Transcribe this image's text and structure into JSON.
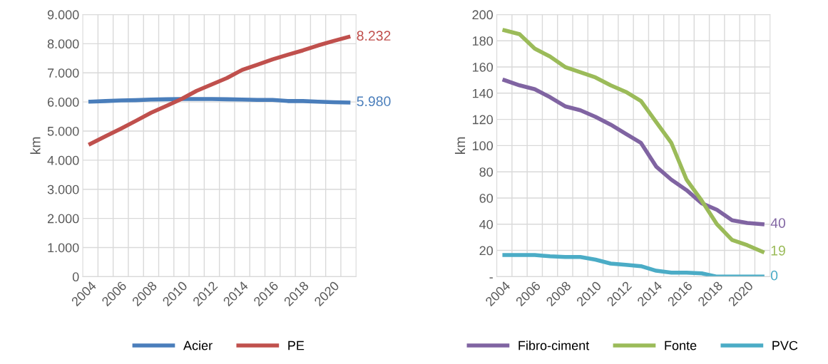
{
  "chart_data": [
    {
      "type": "line",
      "ylabel": "km",
      "categories": [
        "2004",
        null,
        "2006",
        null,
        "2008",
        null,
        "2010",
        null,
        "2012",
        null,
        "2014",
        null,
        "2016",
        null,
        "2018",
        null,
        "2020",
        null
      ],
      "series": [
        {
          "name": "Acier",
          "color": "#4a7ebb",
          "values": [
            6010,
            6030,
            6050,
            6060,
            6080,
            6090,
            6100,
            6100,
            6100,
            6090,
            6080,
            6070,
            6070,
            6030,
            6030,
            6010,
            5990,
            5980
          ],
          "value_labels": [
            null,
            null,
            null,
            null,
            null,
            null,
            null,
            null,
            null,
            null,
            null,
            null,
            null,
            null,
            null,
            null,
            null,
            "5.980"
          ]
        },
        {
          "name": "PE",
          "color": "#c0504d",
          "values": [
            4560,
            4820,
            5080,
            5350,
            5630,
            5860,
            6100,
            6380,
            6600,
            6820,
            7100,
            7280,
            7460,
            7620,
            7770,
            7940,
            8090,
            8232
          ],
          "value_labels": [
            null,
            null,
            null,
            null,
            null,
            null,
            null,
            null,
            null,
            null,
            null,
            null,
            null,
            null,
            null,
            null,
            null,
            "8.232"
          ]
        }
      ],
      "ylim": [
        0,
        9000
      ],
      "yticks": [
        {
          "value": 0,
          "label": "0"
        },
        {
          "value": 1000,
          "label": "1.000"
        },
        {
          "value": 2000,
          "label": "2.000"
        },
        {
          "value": 3000,
          "label": "3.000"
        },
        {
          "value": 4000,
          "label": "4.000"
        },
        {
          "value": 5000,
          "label": "5.000"
        },
        {
          "value": 6000,
          "label": "6.000"
        },
        {
          "value": 7000,
          "label": "7.000"
        },
        {
          "value": 8000,
          "label": "8.000"
        },
        {
          "value": 9000,
          "label": "9.000"
        }
      ],
      "grid": true,
      "legend": "bottom",
      "marker": "none",
      "line_style": "solid"
    },
    {
      "type": "line",
      "ylabel": "km",
      "categories": [
        "2004",
        null,
        "2006",
        null,
        "2008",
        null,
        "2010",
        null,
        "2012",
        null,
        "2014",
        null,
        "2016",
        null,
        "2018",
        null,
        "2020",
        null
      ],
      "series": [
        {
          "name": "Fibro-ciment",
          "color": "#8064a2",
          "values": [
            150,
            146,
            143,
            137,
            130,
            127,
            122,
            116,
            109,
            102,
            84,
            74,
            66,
            56,
            51,
            43,
            41,
            40
          ],
          "value_labels": [
            null,
            null,
            null,
            null,
            null,
            null,
            null,
            null,
            null,
            null,
            null,
            null,
            null,
            null,
            null,
            null,
            null,
            "40"
          ]
        },
        {
          "name": "Fonte",
          "color": "#9bbb59",
          "values": [
            188,
            185,
            174,
            168,
            160,
            156,
            152,
            146,
            141,
            134,
            118,
            102,
            74,
            58,
            40,
            28,
            24,
            19
          ],
          "value_labels": [
            null,
            null,
            null,
            null,
            null,
            null,
            null,
            null,
            null,
            null,
            null,
            null,
            null,
            null,
            null,
            null,
            null,
            "19"
          ]
        },
        {
          "name": "PVC",
          "color": "#4bacc6",
          "values": [
            16.5,
            16.5,
            16.5,
            15.5,
            15,
            15,
            13,
            10,
            9,
            8,
            4.5,
            3,
            3,
            2.5,
            0,
            0,
            0,
            0
          ],
          "value_labels": [
            null,
            null,
            null,
            null,
            null,
            null,
            null,
            null,
            null,
            null,
            null,
            null,
            null,
            null,
            null,
            null,
            null,
            "0"
          ]
        }
      ],
      "ylim": [
        0,
        200
      ],
      "yticks": [
        {
          "value": 0,
          "label": "-"
        },
        20,
        40,
        60,
        80,
        100,
        120,
        140,
        160,
        180,
        200
      ],
      "grid": true,
      "legend": "bottom",
      "marker": "none",
      "line_style": "solid"
    }
  ]
}
